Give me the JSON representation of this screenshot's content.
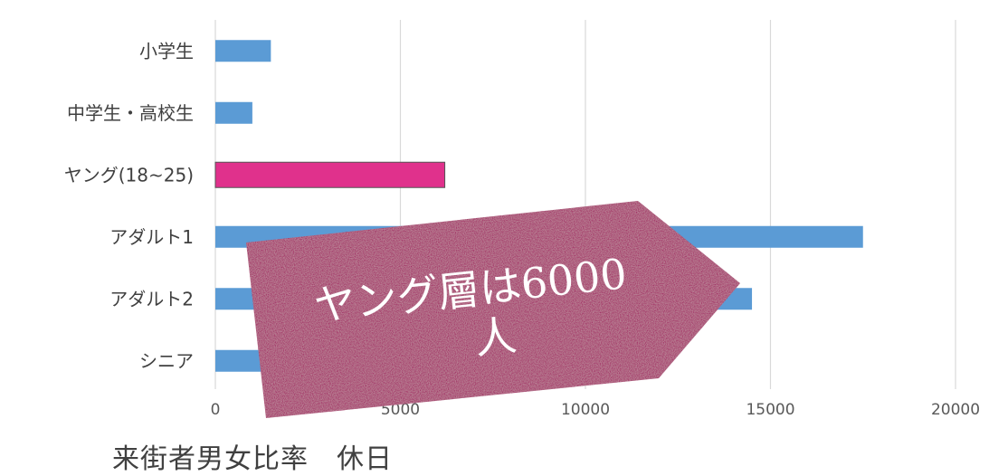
{
  "chart_data": {
    "type": "bar",
    "orientation": "horizontal",
    "categories": [
      "小学生",
      "中学生・高校生",
      "ヤング(18~25)",
      "アダルト1",
      "アダルト2",
      "シニア"
    ],
    "values": [
      1500,
      1000,
      6200,
      17500,
      14500,
      4500
    ],
    "highlight_index": 2,
    "xlim": [
      0,
      20000
    ],
    "xticks": [
      0,
      5000,
      10000,
      15000,
      20000
    ],
    "grid": true,
    "legend": "none",
    "colors": {
      "bar": "#5b9bd5",
      "highlight": "#e0318c",
      "callout": "#a0155f"
    },
    "caption": "来街者男女比率　休日",
    "callout": {
      "lines": [
        "ヤング層は6000",
        "人"
      ]
    }
  }
}
